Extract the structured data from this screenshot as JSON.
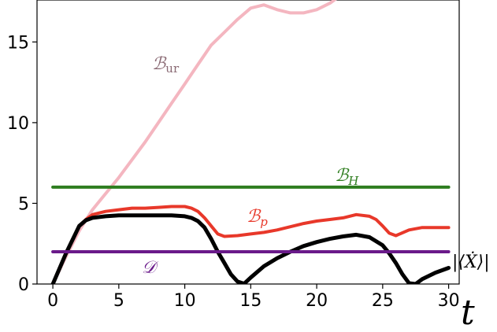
{
  "chart_data": {
    "type": "line",
    "title": "",
    "xlabel": "t",
    "ylabel": "",
    "xlim": [
      -1.2,
      30.8
    ],
    "ylim": [
      0,
      17.6
    ],
    "xticks": [
      0,
      5,
      10,
      15,
      20,
      25,
      30
    ],
    "yticks": [
      0,
      5,
      10,
      15
    ],
    "grid": false,
    "legend": "none",
    "series": [
      {
        "name": "ℬur",
        "color": "#f4b6c0",
        "x": [
          0,
          1,
          2,
          3,
          4,
          5,
          6,
          7,
          8,
          9,
          10,
          11,
          12,
          13,
          14,
          15,
          16,
          17,
          18,
          19,
          20,
          21,
          22,
          23
        ],
        "y": [
          0,
          1.7,
          3.3,
          4.6,
          5.6,
          6.6,
          7.7,
          8.8,
          10.0,
          11.2,
          12.4,
          13.6,
          14.8,
          15.6,
          16.4,
          17.1,
          17.3,
          17.0,
          16.8,
          16.8,
          17.0,
          17.4,
          18.0,
          18.6
        ]
      },
      {
        "name": "ℬH",
        "color": "#2e7d1f",
        "x": [
          0,
          30
        ],
        "y": [
          6.0,
          6.0
        ]
      },
      {
        "name": "ℬp",
        "color": "#e8382a",
        "x": [
          0,
          1,
          2,
          2.5,
          3,
          4,
          5,
          6,
          7,
          8,
          9,
          10,
          10.5,
          11,
          11.5,
          12,
          12.5,
          13,
          14,
          15,
          16,
          17,
          18,
          19,
          20,
          21,
          22,
          23,
          24,
          24.5,
          25,
          25.5,
          26,
          27,
          28,
          29,
          30
        ],
        "y": [
          0,
          1.9,
          3.6,
          4.0,
          4.3,
          4.5,
          4.6,
          4.7,
          4.7,
          4.75,
          4.8,
          4.8,
          4.7,
          4.5,
          4.1,
          3.6,
          3.1,
          2.95,
          3.0,
          3.1,
          3.2,
          3.35,
          3.55,
          3.75,
          3.9,
          4.0,
          4.1,
          4.3,
          4.2,
          4.0,
          3.6,
          3.15,
          3.0,
          3.35,
          3.5,
          3.5,
          3.5
        ]
      },
      {
        "name": "|⟨Ẋ⟩|",
        "color": "#000000",
        "x": [
          0,
          1,
          2,
          2.5,
          3,
          4,
          5,
          6,
          7,
          8,
          9,
          10,
          10.5,
          11,
          11.5,
          12,
          12.5,
          13,
          13.5,
          14,
          14.5,
          15,
          16,
          17,
          18,
          19,
          20,
          21,
          22,
          23,
          24,
          25,
          25.5,
          26,
          26.5,
          27,
          27.5,
          28,
          29,
          30
        ],
        "y": [
          0,
          1.9,
          3.6,
          3.95,
          4.1,
          4.2,
          4.25,
          4.25,
          4.25,
          4.25,
          4.25,
          4.2,
          4.1,
          3.9,
          3.5,
          2.8,
          2.0,
          1.3,
          0.6,
          0.15,
          0.02,
          0.4,
          1.1,
          1.6,
          2.0,
          2.35,
          2.6,
          2.8,
          2.95,
          3.05,
          2.9,
          2.4,
          1.9,
          1.3,
          0.6,
          0.05,
          0.0,
          0.3,
          0.7,
          1.0
        ]
      },
      {
        "name": "𝒟",
        "color": "#6a1a8a",
        "x": [
          0,
          30
        ],
        "y": [
          2.0,
          2.0
        ]
      }
    ]
  },
  "labels": {
    "bur": "ℬur",
    "bh": "ℬH",
    "bp": "ℬp",
    "d": "𝒟",
    "xdot": "|⟨Ẋ⟩|",
    "t": "t"
  }
}
